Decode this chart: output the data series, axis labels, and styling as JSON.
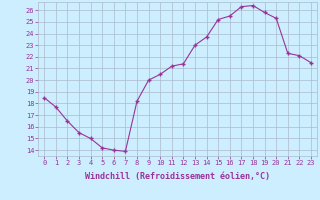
{
  "x": [
    0,
    1,
    2,
    3,
    4,
    5,
    6,
    7,
    8,
    9,
    10,
    11,
    12,
    13,
    14,
    15,
    16,
    17,
    18,
    19,
    20,
    21,
    22,
    23
  ],
  "y": [
    18.5,
    17.7,
    16.5,
    15.5,
    15.0,
    14.2,
    14.0,
    13.9,
    18.2,
    20.0,
    20.5,
    21.2,
    21.4,
    23.0,
    23.7,
    25.2,
    25.5,
    26.3,
    26.4,
    25.8,
    25.3,
    22.3,
    22.1,
    21.5
  ],
  "line_color": "#993399",
  "marker": "+",
  "marker_size": 3,
  "marker_color": "#993399",
  "bg_color": "#cceeff",
  "grid_color": "#aabbcc",
  "xlabel": "Windchill (Refroidissement éolien,°C)",
  "xlabel_color": "#993399",
  "tick_color": "#993399",
  "xlim": [
    -0.5,
    23.5
  ],
  "ylim": [
    13.5,
    26.7
  ],
  "yticks": [
    14,
    15,
    16,
    17,
    18,
    19,
    20,
    21,
    22,
    23,
    24,
    25,
    26
  ],
  "xticks": [
    0,
    1,
    2,
    3,
    4,
    5,
    6,
    7,
    8,
    9,
    10,
    11,
    12,
    13,
    14,
    15,
    16,
    17,
    18,
    19,
    20,
    21,
    22,
    23
  ],
  "tick_fontsize": 5.0,
  "xlabel_fontsize": 6.0
}
